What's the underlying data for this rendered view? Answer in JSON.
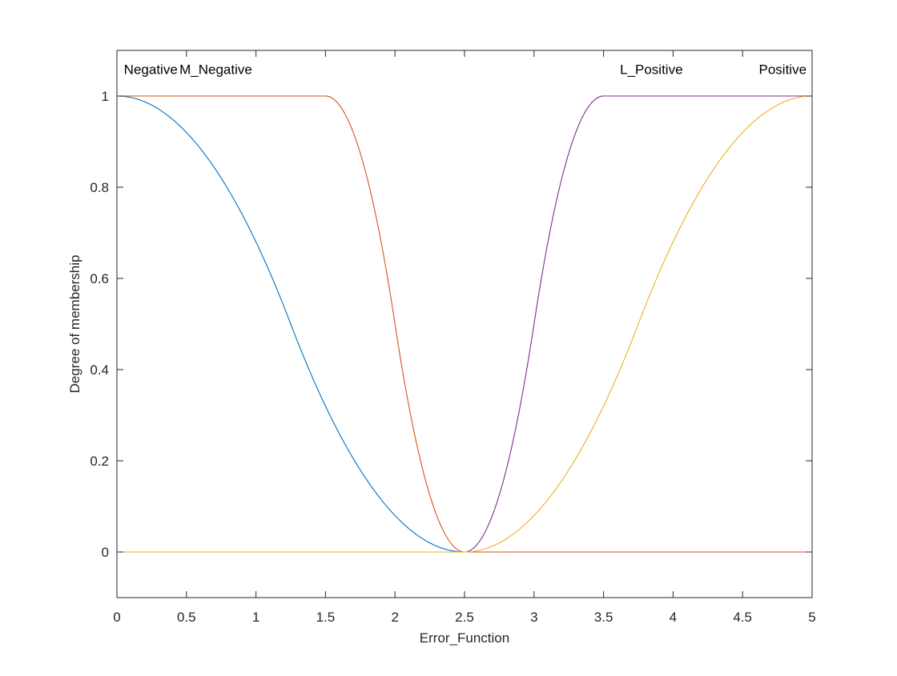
{
  "chart_data": {
    "type": "line",
    "title": "",
    "xlabel": "Error_Function",
    "ylabel": "Degree of membership",
    "xlim": [
      0,
      5
    ],
    "ylim": [
      -0.1,
      1.1
    ],
    "xticks": [
      0,
      0.5,
      1,
      1.5,
      2,
      2.5,
      3,
      3.5,
      4,
      4.5,
      5
    ],
    "xtick_labels": [
      "0",
      "0.5",
      "1",
      "1.5",
      "2",
      "2.5",
      "3",
      "3.5",
      "4",
      "4.5",
      "5"
    ],
    "yticks": [
      0,
      0.2,
      0.4,
      0.6,
      0.8,
      1
    ],
    "ytick_labels": [
      "0",
      "0.2",
      "0.4",
      "0.6",
      "0.8",
      "1"
    ],
    "grid": false,
    "box": true,
    "series": [
      {
        "name": "Negative",
        "mf": "zmf",
        "params": [
          0,
          2.5
        ],
        "color": "#0072BD",
        "x": [
          0,
          0.25,
          0.5,
          0.75,
          1,
          1.25,
          1.5,
          1.75,
          2,
          2.25,
          2.5,
          5
        ],
        "y": [
          1,
          0.98,
          0.92,
          0.82,
          0.68,
          0.5,
          0.32,
          0.18,
          0.08,
          0.02,
          0,
          0
        ]
      },
      {
        "name": "M_Negative",
        "mf": "zmf",
        "params": [
          1.5,
          2.5
        ],
        "color": "#D95319",
        "x": [
          0,
          1.5,
          1.75,
          2,
          2.25,
          2.5,
          5
        ],
        "y": [
          1,
          1,
          0.875,
          0.5,
          0.125,
          0,
          0
        ]
      },
      {
        "name": "L_Positive",
        "mf": "smf",
        "params": [
          2.5,
          3.5
        ],
        "color": "#7E2F8E",
        "x": [
          0,
          2.5,
          2.75,
          3,
          3.25,
          3.5,
          5
        ],
        "y": [
          0,
          0,
          0.125,
          0.5,
          0.875,
          1,
          1
        ]
      },
      {
        "name": "Positive",
        "mf": "smf",
        "params": [
          2.5,
          5
        ],
        "color": "#EDB120",
        "x": [
          0,
          2.5,
          2.75,
          3,
          3.25,
          3.5,
          3.75,
          4,
          4.25,
          4.5,
          4.75,
          5
        ],
        "y": [
          0,
          0,
          0.02,
          0.08,
          0.18,
          0.32,
          0.5,
          0.68,
          0.82,
          0.92,
          0.98,
          1
        ]
      }
    ],
    "annotations": [
      {
        "text": "Negative",
        "x": 0.05,
        "y": 1.048,
        "anchor": "start"
      },
      {
        "text": "M_Negative",
        "x": 0.45,
        "y": 1.048,
        "anchor": "start"
      },
      {
        "text": "L_Positive",
        "x": 4.07,
        "y": 1.048,
        "anchor": "end"
      },
      {
        "text": "Positive",
        "x": 4.96,
        "y": 1.048,
        "anchor": "end"
      }
    ]
  }
}
